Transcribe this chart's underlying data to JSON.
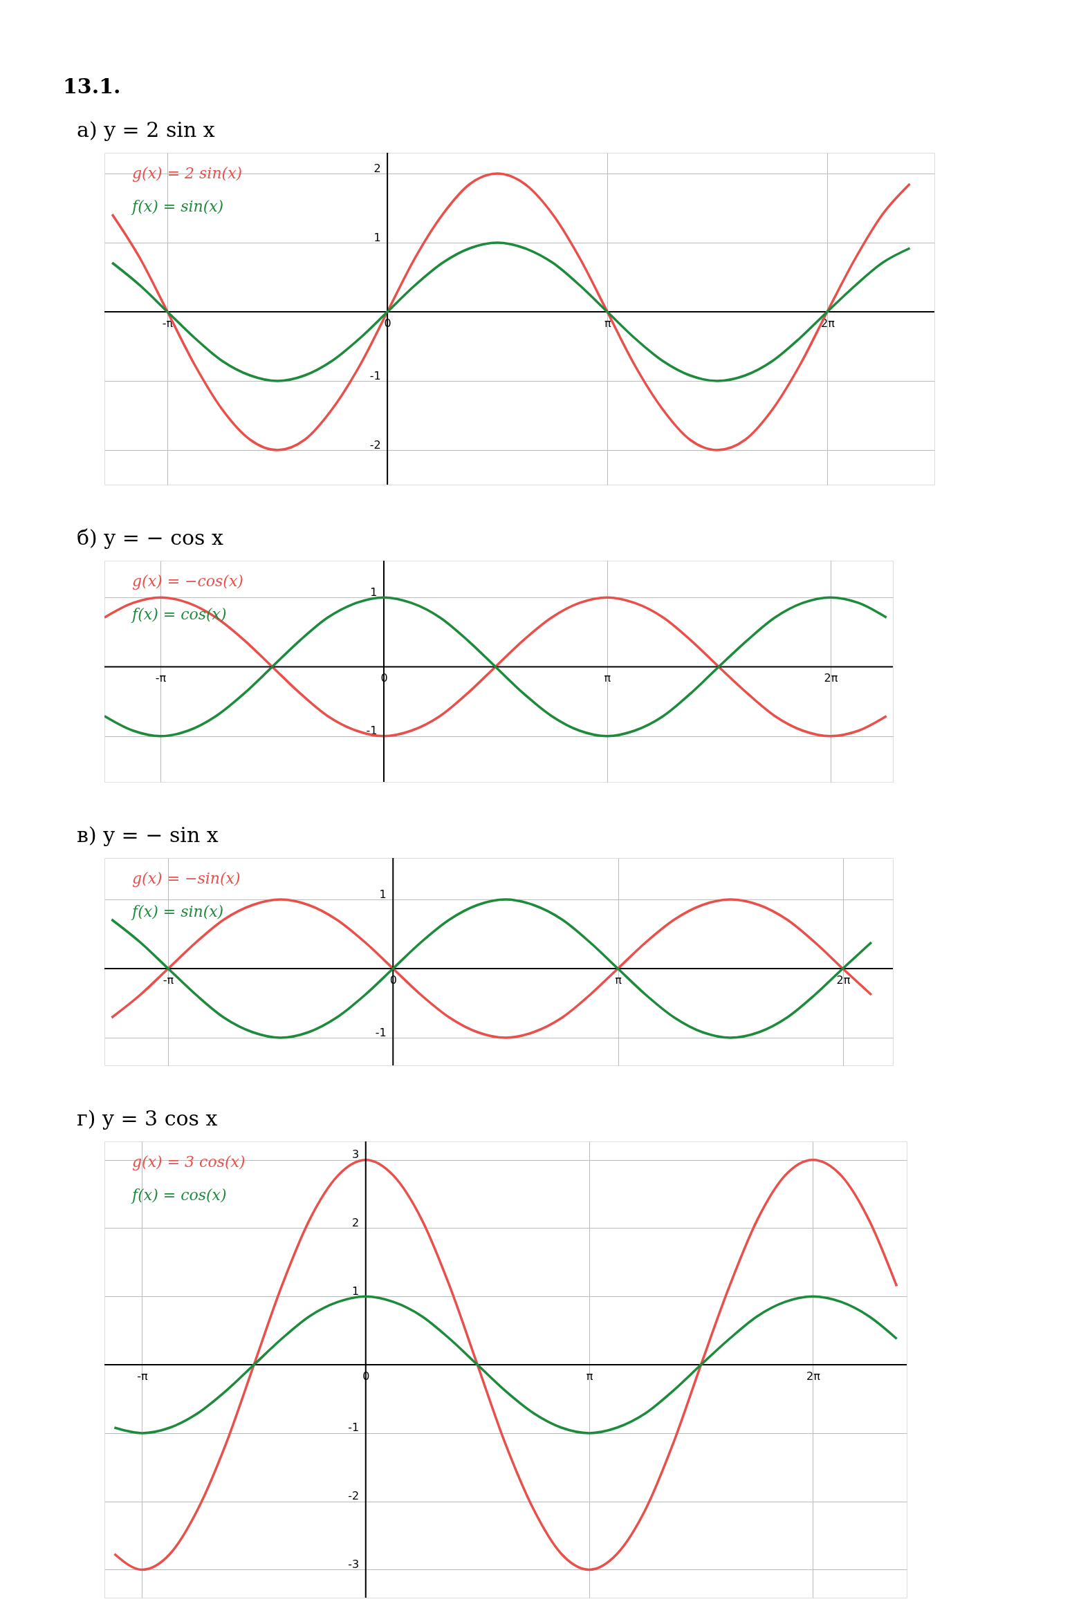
{
  "chart_data": [
    {
      "type": "line",
      "title": "а)  y = 2 sin x",
      "annotations": [
        "13.1."
      ],
      "grid": true,
      "xlim": [
        -4.04,
        7.81
      ],
      "ylim": [
        -2.5,
        2.3
      ],
      "xticks": [
        {
          "value": -3.1416,
          "label": "-π"
        },
        {
          "value": 0,
          "label": "0"
        },
        {
          "value": 3.1416,
          "label": "π"
        },
        {
          "value": 6.2832,
          "label": "2π"
        }
      ],
      "yticks": [
        -2,
        -1,
        1,
        2
      ],
      "x": [
        -3.93,
        -3.53,
        -3.14,
        -2.75,
        -2.36,
        -1.96,
        -1.57,
        -1.18,
        -0.79,
        -0.39,
        0,
        0.39,
        0.79,
        1.18,
        1.57,
        1.96,
        2.36,
        2.75,
        3.14,
        3.53,
        3.93,
        4.32,
        4.71,
        5.11,
        5.5,
        5.89,
        6.28,
        6.68,
        7.07,
        7.46
      ],
      "series": [
        {
          "name": "g(x) = 2 sin(x)",
          "color": "#e8504c",
          "values": [
            1.41,
            0.77,
            0,
            -0.77,
            -1.41,
            -1.85,
            -2,
            -1.85,
            -1.41,
            -0.77,
            0,
            0.77,
            1.41,
            1.85,
            2,
            1.85,
            1.41,
            0.77,
            0,
            -0.77,
            -1.41,
            -1.85,
            -2,
            -1.85,
            -1.41,
            -0.77,
            0,
            0.77,
            1.41,
            1.85
          ]
        },
        {
          "name": "f(x) = sin(x)",
          "color": "#1e8a3c",
          "values": [
            0.71,
            0.38,
            0,
            -0.38,
            -0.71,
            -0.92,
            -1,
            -0.92,
            -0.71,
            -0.38,
            0,
            0.38,
            0.71,
            0.92,
            1,
            0.92,
            0.71,
            0.38,
            0,
            -0.38,
            -0.71,
            -0.92,
            -1,
            -0.92,
            -0.71,
            -0.38,
            0,
            0.38,
            0.71,
            0.92
          ]
        }
      ]
    },
    {
      "type": "line",
      "title": "б)  y = − cos x",
      "grid": true,
      "xlim": [
        -3.93,
        7.16
      ],
      "ylim": [
        -1.66,
        1.53
      ],
      "xticks": [
        {
          "value": -3.1416,
          "label": "-π"
        },
        {
          "value": 0,
          "label": "0"
        },
        {
          "value": 3.1416,
          "label": "π"
        },
        {
          "value": 6.2832,
          "label": "2π"
        }
      ],
      "yticks": [
        -1,
        1
      ],
      "x": [
        -3.93,
        -3.53,
        -3.14,
        -2.75,
        -2.36,
        -1.96,
        -1.57,
        -1.18,
        -0.79,
        -0.39,
        0,
        0.39,
        0.79,
        1.18,
        1.57,
        1.96,
        2.36,
        2.75,
        3.14,
        3.53,
        3.93,
        4.32,
        4.71,
        5.11,
        5.5,
        5.89,
        6.28,
        6.68,
        7.07
      ],
      "series": [
        {
          "name": "g(x) = −cos(x)",
          "color": "#e8504c",
          "values": [
            0.71,
            0.92,
            1,
            0.92,
            0.71,
            0.38,
            0,
            -0.38,
            -0.71,
            -0.92,
            -1,
            -0.92,
            -0.71,
            -0.38,
            0,
            0.38,
            0.71,
            0.92,
            1,
            0.92,
            0.71,
            0.38,
            0,
            -0.38,
            -0.71,
            -0.92,
            -1,
            -0.92,
            -0.71
          ]
        },
        {
          "name": "f(x) = cos(x)",
          "color": "#1e8a3c",
          "values": [
            -0.71,
            -0.92,
            -1,
            -0.92,
            -0.71,
            -0.38,
            0,
            0.38,
            0.71,
            0.92,
            1,
            0.92,
            0.71,
            0.38,
            0,
            -0.38,
            -0.71,
            -0.92,
            -1,
            -0.92,
            -0.71,
            -0.38,
            0,
            0.38,
            0.71,
            0.92,
            1,
            0.92,
            0.71
          ]
        }
      ]
    },
    {
      "type": "line",
      "title": "в)  y = − sin x",
      "grid": true,
      "xlim": [
        -4.03,
        6.98
      ],
      "ylim": [
        -1.4,
        1.6
      ],
      "xticks": [
        {
          "value": -3.1416,
          "label": "-π"
        },
        {
          "value": 0,
          "label": "0"
        },
        {
          "value": 3.1416,
          "label": "π"
        },
        {
          "value": 6.2832,
          "label": "2π"
        }
      ],
      "yticks": [
        -1,
        1
      ],
      "x": [
        -3.93,
        -3.53,
        -3.14,
        -2.75,
        -2.36,
        -1.96,
        -1.57,
        -1.18,
        -0.79,
        -0.39,
        0,
        0.39,
        0.79,
        1.18,
        1.57,
        1.96,
        2.36,
        2.75,
        3.14,
        3.53,
        3.93,
        4.32,
        4.71,
        5.11,
        5.5,
        5.89,
        6.28,
        6.68
      ],
      "series": [
        {
          "name": "g(x) = −sin(x)",
          "color": "#e8504c",
          "values": [
            -0.71,
            -0.38,
            0,
            0.38,
            0.71,
            0.92,
            1,
            0.92,
            0.71,
            0.38,
            0,
            -0.38,
            -0.71,
            -0.92,
            -1,
            -0.92,
            -0.71,
            -0.38,
            0,
            0.38,
            0.71,
            0.92,
            1,
            0.92,
            0.71,
            0.38,
            0,
            -0.38
          ]
        },
        {
          "name": "f(x) = sin(x)",
          "color": "#1e8a3c",
          "values": [
            0.71,
            0.38,
            0,
            -0.38,
            -0.71,
            -0.92,
            -1,
            -0.92,
            -0.71,
            -0.38,
            0,
            0.38,
            0.71,
            0.92,
            1,
            0.92,
            0.71,
            0.38,
            0,
            -0.38,
            -0.71,
            -0.92,
            -1,
            -0.92,
            -0.71,
            -0.38,
            0,
            0.38
          ]
        }
      ]
    },
    {
      "type": "line",
      "title": "г)  y = 3 cos x",
      "grid": true,
      "xlim": [
        -3.67,
        7.6
      ],
      "ylim": [
        -3.41,
        3.27
      ],
      "xticks": [
        {
          "value": -3.1416,
          "label": "-π"
        },
        {
          "value": 0,
          "label": "0"
        },
        {
          "value": 3.1416,
          "label": "π"
        },
        {
          "value": 6.2832,
          "label": "2π"
        }
      ],
      "yticks": [
        -3,
        -2,
        -1,
        1,
        2,
        3
      ],
      "x": [
        -3.53,
        -3.14,
        -2.75,
        -2.36,
        -1.96,
        -1.57,
        -1.18,
        -0.79,
        -0.39,
        0,
        0.39,
        0.79,
        1.18,
        1.57,
        1.96,
        2.36,
        2.75,
        3.14,
        3.53,
        3.93,
        4.32,
        4.71,
        5.11,
        5.5,
        5.89,
        6.28,
        6.68,
        7.07,
        7.46
      ],
      "series": [
        {
          "name": "g(x) = 3 cos(x)",
          "color": "#e8504c",
          "values": [
            -2.77,
            -3,
            -2.77,
            -2.12,
            -1.15,
            0,
            1.15,
            2.12,
            2.77,
            3,
            2.77,
            2.12,
            1.15,
            0,
            -1.15,
            -2.12,
            -2.77,
            -3,
            -2.77,
            -2.12,
            -1.15,
            0,
            1.15,
            2.12,
            2.77,
            3,
            2.77,
            2.12,
            1.15
          ]
        },
        {
          "name": "f(x) = cos(x)",
          "color": "#1e8a3c",
          "values": [
            -0.92,
            -1,
            -0.92,
            -0.71,
            -0.38,
            0,
            0.38,
            0.71,
            0.92,
            1,
            0.92,
            0.71,
            0.38,
            0,
            -0.38,
            -0.71,
            -0.92,
            -1,
            -0.92,
            -0.71,
            -0.38,
            0,
            0.38,
            0.71,
            0.92,
            1,
            0.92,
            0.71,
            0.38
          ]
        }
      ]
    }
  ]
}
